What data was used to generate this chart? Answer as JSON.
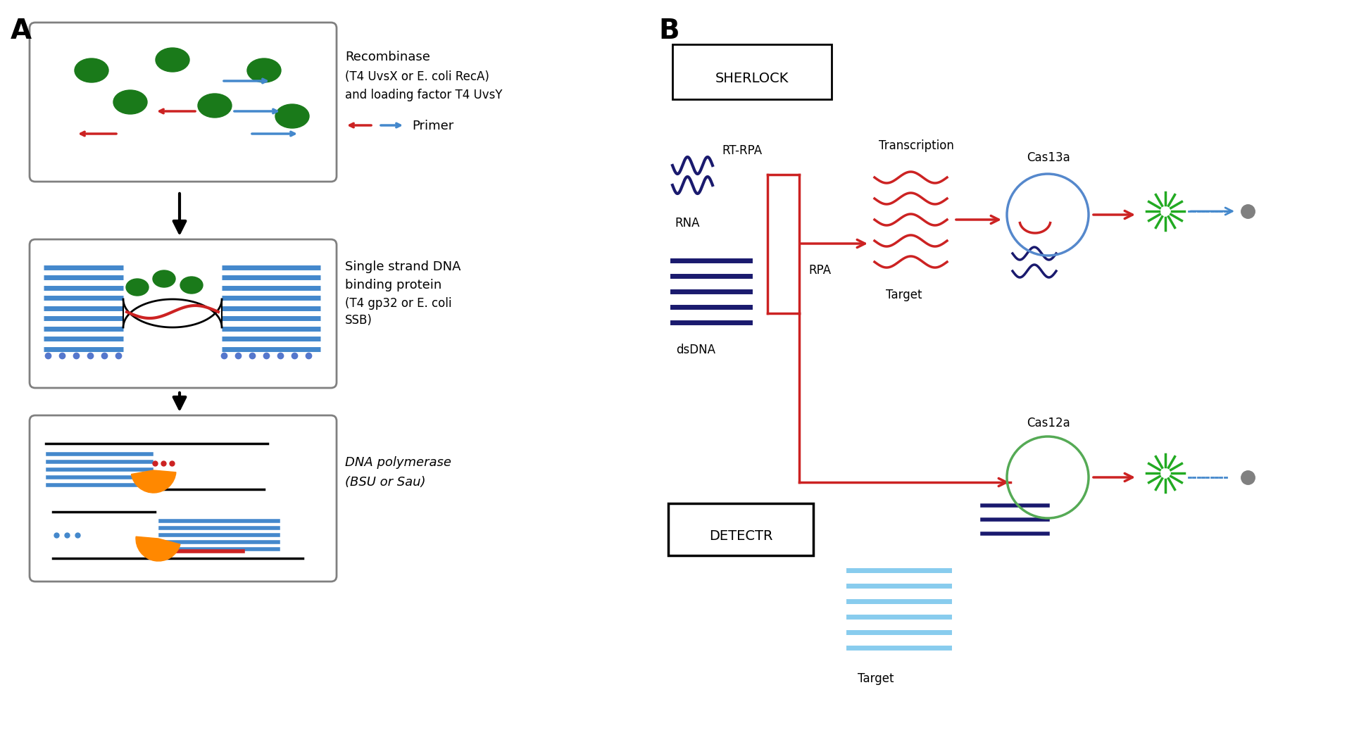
{
  "panel_A_label": "A",
  "panel_B_label": "B",
  "bg_color": "#ffffff",
  "text_color": "#000000",
  "green_color": "#1a7a1a",
  "blue_color": "#4488cc",
  "red_color": "#cc2222",
  "navy": "#1a1a6e",
  "orange_color": "#ff8800",
  "gray_color": "#888888",
  "light_blue": "#88ccee",
  "panel_A_texts": {
    "recombinase": "Recombinase",
    "t4_uvsx": "(T4 UvsX or E. coli RecA)",
    "loading": "and loading factor T4 UvsY",
    "primer": "Primer",
    "ssDNA": "Single strand DNA",
    "binding": "binding protein",
    "t4gp32": "(T4 gp32 or E. coli",
    "ssb": "SSB)",
    "dna_pol": "DNA polymerase",
    "bsu": "(BSU or Sau)"
  },
  "panel_B_texts": {
    "sherlock": "SHERLOCK",
    "detectr": "DETECTR",
    "rt_rpa": "RT-RPA",
    "rna": "RNA",
    "transcription": "Transcription",
    "target": "Target",
    "rpa": "RPA",
    "dsdna": "dsDNA",
    "cas13a": "Cas13a",
    "cas12a": "Cas12a"
  }
}
